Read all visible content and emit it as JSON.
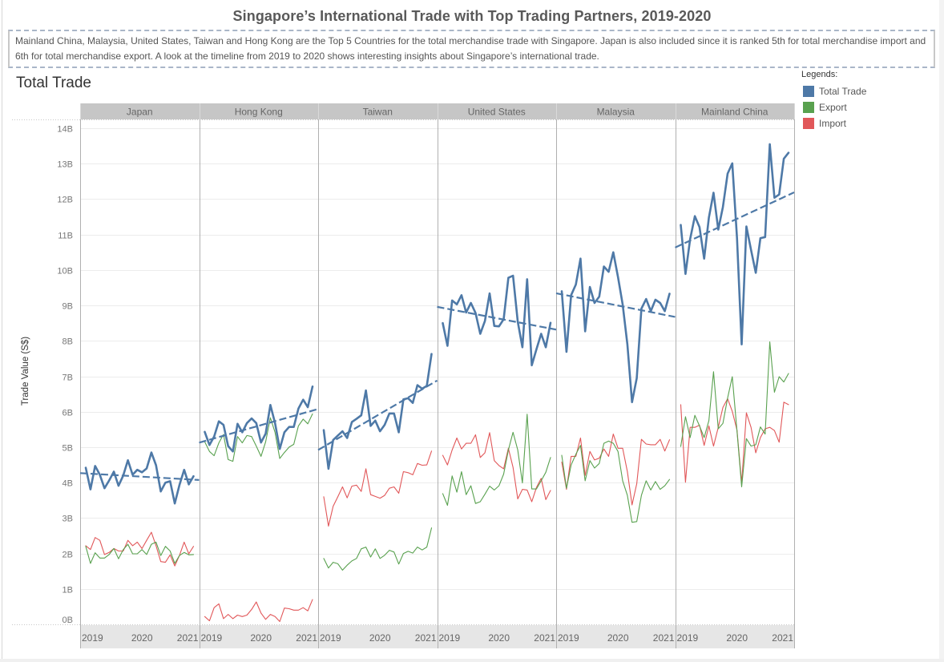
{
  "dashboard": {
    "title": "Singapore’s International Trade with Top Trading Partners, 2019-2020",
    "description": "Mainland China, Malaysia, United States, Taiwan and Hong Kong are the Top 5 Countries for the total merchandise trade with Singapore. Japan is also included since it is ranked 5th for total merchandise import and 6th for total merchandise export. A look at the timeline from 2019 to 2020 shows interesting insights about Singapore’s international trade.",
    "sheet_title": "Total Trade"
  },
  "legend": {
    "title": "Legends:",
    "items": [
      {
        "label": "Total Trade",
        "color": "#4e79a7"
      },
      {
        "label": "Export",
        "color": "#59a14f"
      },
      {
        "label": "Import",
        "color": "#e15759"
      }
    ]
  },
  "chart_data": {
    "type": "line",
    "title": "Total Trade",
    "ylabel": "Trade Value (S$)",
    "xlabel": "",
    "ylim": [
      0,
      14.25
    ],
    "yunit": "billions S$",
    "ytick_values": [
      0,
      1,
      2,
      3,
      4,
      5,
      6,
      7,
      8,
      9,
      10,
      11,
      12,
      13,
      14
    ],
    "yticks": [
      "0B",
      "1B",
      "2B",
      "3B",
      "4B",
      "5B",
      "6B",
      "7B",
      "8B",
      "9B",
      "10B",
      "11B",
      "12B",
      "13B",
      "14B"
    ],
    "xticks": [
      "2019",
      "2020",
      "2021"
    ],
    "grid": true,
    "legend_position": "top-right",
    "trendline": {
      "series": "Total Trade",
      "type": "linear",
      "style": "dashed"
    },
    "series_colors": {
      "Total Trade": "#4e79a7",
      "Export": "#59a14f",
      "Import": "#e15759"
    },
    "x": [
      "2019-01",
      "2019-02",
      "2019-03",
      "2019-04",
      "2019-05",
      "2019-06",
      "2019-07",
      "2019-08",
      "2019-09",
      "2019-10",
      "2019-11",
      "2019-12",
      "2020-01",
      "2020-02",
      "2020-03",
      "2020-04",
      "2020-05",
      "2020-06",
      "2020-07",
      "2020-08",
      "2020-09",
      "2020-10",
      "2020-11",
      "2020-12"
    ],
    "panels": [
      {
        "name": "Japan",
        "series": [
          {
            "name": "Total Trade",
            "values": [
              4.42,
              3.81,
              4.47,
              4.22,
              3.84,
              4.06,
              4.31,
              3.91,
              4.2,
              4.63,
              4.22,
              4.36,
              4.29,
              4.4,
              4.85,
              4.49,
              3.75,
              4.0,
              4.04,
              3.41,
              3.93,
              4.36,
              3.95,
              4.18
            ]
          },
          {
            "name": "Export",
            "values": [
              2.2,
              1.72,
              2.02,
              1.87,
              1.87,
              1.97,
              2.14,
              1.85,
              2.11,
              2.26,
              1.99,
              1.99,
              2.11,
              1.97,
              2.26,
              2.32,
              1.94,
              2.2,
              2.07,
              1.72,
              1.94,
              2.03,
              1.96,
              1.97
            ]
          },
          {
            "name": "Import",
            "values": [
              2.22,
              2.11,
              2.45,
              2.37,
              1.97,
              2.03,
              2.14,
              2.07,
              2.07,
              2.37,
              2.22,
              2.32,
              2.14,
              2.37,
              2.6,
              2.22,
              1.77,
              1.75,
              1.96,
              1.65,
              1.94,
              2.32,
              1.99,
              2.2
            ]
          }
        ]
      },
      {
        "name": "Hong Kong",
        "series": [
          {
            "name": "Total Trade",
            "values": [
              5.43,
              5.06,
              5.3,
              5.73,
              5.63,
              5.03,
              4.88,
              5.66,
              5.42,
              5.68,
              5.81,
              5.68,
              5.13,
              5.38,
              6.19,
              5.68,
              4.95,
              5.42,
              5.57,
              5.57,
              6.09,
              6.34,
              6.13,
              6.71
            ]
          },
          {
            "name": "Export",
            "values": [
              5.15,
              4.88,
              4.76,
              5.12,
              5.36,
              4.65,
              4.6,
              5.3,
              5.12,
              5.33,
              5.3,
              5.03,
              4.74,
              5.15,
              5.83,
              5.42,
              4.68,
              4.85,
              5.0,
              5.08,
              5.6,
              5.79,
              5.66,
              5.94
            ]
          },
          {
            "name": "Import",
            "values": [
              0.22,
              0.1,
              0.47,
              0.58,
              0.16,
              0.28,
              0.16,
              0.26,
              0.22,
              0.26,
              0.42,
              0.63,
              0.32,
              0.14,
              0.28,
              0.22,
              0.08,
              0.46,
              0.44,
              0.4,
              0.4,
              0.47,
              0.38,
              0.7
            ]
          }
        ]
      },
      {
        "name": "Taiwan",
        "series": [
          {
            "name": "Total Trade",
            "values": [
              5.48,
              4.39,
              5.2,
              5.33,
              5.45,
              5.26,
              5.71,
              5.8,
              5.9,
              6.6,
              5.6,
              5.75,
              5.45,
              5.63,
              5.95,
              5.95,
              5.42,
              6.35,
              6.38,
              6.25,
              6.75,
              6.65,
              6.73,
              7.63
            ]
          },
          {
            "name": "Export",
            "values": [
              1.86,
              1.59,
              1.75,
              1.71,
              1.53,
              1.67,
              1.79,
              1.86,
              2.13,
              2.18,
              1.9,
              2.13,
              1.86,
              1.95,
              2.09,
              2.04,
              1.7,
              2.0,
              2.06,
              2.01,
              2.18,
              2.1,
              2.18,
              2.72
            ]
          },
          {
            "name": "Import",
            "values": [
              3.6,
              2.77,
              3.33,
              3.6,
              3.88,
              3.57,
              3.9,
              3.93,
              3.75,
              4.39,
              3.66,
              3.61,
              3.56,
              3.64,
              3.84,
              3.88,
              3.7,
              4.31,
              4.28,
              4.22,
              4.54,
              4.49,
              4.5,
              4.89
            ]
          }
        ]
      },
      {
        "name": "United States",
        "series": [
          {
            "name": "Total Trade",
            "values": [
              8.5,
              7.86,
              9.14,
              9.03,
              9.29,
              8.8,
              9.07,
              8.79,
              8.2,
              8.56,
              9.34,
              8.42,
              8.41,
              8.61,
              9.78,
              9.84,
              8.54,
              7.82,
              9.74,
              7.31,
              7.76,
              8.2,
              7.82,
              8.51
            ]
          },
          {
            "name": "Export",
            "values": [
              3.69,
              3.36,
              4.19,
              3.73,
              4.31,
              3.66,
              3.91,
              3.41,
              3.46,
              3.67,
              3.9,
              3.79,
              3.91,
              4.24,
              4.92,
              5.42,
              4.92,
              3.99,
              5.93,
              3.82,
              3.82,
              4.05,
              4.29,
              4.71
            ]
          },
          {
            "name": "Import",
            "values": [
              4.77,
              4.5,
              4.92,
              5.26,
              4.95,
              5.11,
              5.11,
              5.35,
              4.71,
              4.84,
              5.41,
              4.62,
              4.48,
              4.39,
              4.97,
              4.43,
              3.54,
              3.81,
              3.79,
              3.46,
              3.86,
              4.12,
              3.52,
              3.78
            ]
          }
        ]
      },
      {
        "name": "Malaysia",
        "series": [
          {
            "name": "Total Trade",
            "values": [
              9.4,
              7.69,
              9.29,
              9.59,
              10.32,
              8.27,
              9.52,
              9.07,
              9.25,
              10.1,
              9.95,
              10.5,
              9.8,
              9.03,
              7.9,
              6.27,
              6.95,
              8.91,
              9.18,
              8.84,
              9.16,
              9.07,
              8.84,
              9.33
            ]
          },
          {
            "name": "Export",
            "values": [
              4.77,
              3.84,
              4.5,
              4.8,
              5.05,
              4.05,
              4.62,
              4.41,
              4.54,
              5.11,
              5.17,
              5.11,
              4.88,
              4.05,
              3.64,
              2.88,
              2.9,
              3.64,
              4.05,
              3.79,
              4.03,
              3.81,
              3.91,
              4.09
            ]
          },
          {
            "name": "Import",
            "values": [
              4.58,
              3.81,
              4.74,
              4.74,
              5.26,
              4.2,
              4.88,
              4.64,
              4.69,
              4.95,
              4.74,
              5.37,
              4.97,
              4.97,
              4.31,
              3.37,
              3.97,
              5.22,
              5.09,
              5.07,
              5.07,
              5.22,
              4.89,
              5.21
            ]
          }
        ]
      },
      {
        "name": "Mainland China",
        "series": [
          {
            "name": "Total Trade",
            "values": [
              11.27,
              9.89,
              10.87,
              11.52,
              11.21,
              10.32,
              11.48,
              12.18,
              11.14,
              11.78,
              12.72,
              13.01,
              10.9,
              7.9,
              11.23,
              10.57,
              9.92,
              10.9,
              10.93,
              13.55,
              12.04,
              12.13,
              13.14,
              13.31
            ]
          },
          {
            "name": "Export",
            "values": [
              5.02,
              5.86,
              5.27,
              5.9,
              5.6,
              5.27,
              5.75,
              7.13,
              5.52,
              5.67,
              6.39,
              6.99,
              5.45,
              3.88,
              5.24,
              5.03,
              5.07,
              5.57,
              5.37,
              7.97,
              6.55,
              6.99,
              6.84,
              7.08
            ]
          },
          {
            "name": "Import",
            "values": [
              6.2,
              4.01,
              5.56,
              5.56,
              5.62,
              5.05,
              5.6,
              5.03,
              5.56,
              6.12,
              6.37,
              6.01,
              5.48,
              3.99,
              5.97,
              5.56,
              4.84,
              5.27,
              5.52,
              5.56,
              5.47,
              5.14,
              6.27,
              6.2
            ]
          }
        ]
      }
    ]
  }
}
